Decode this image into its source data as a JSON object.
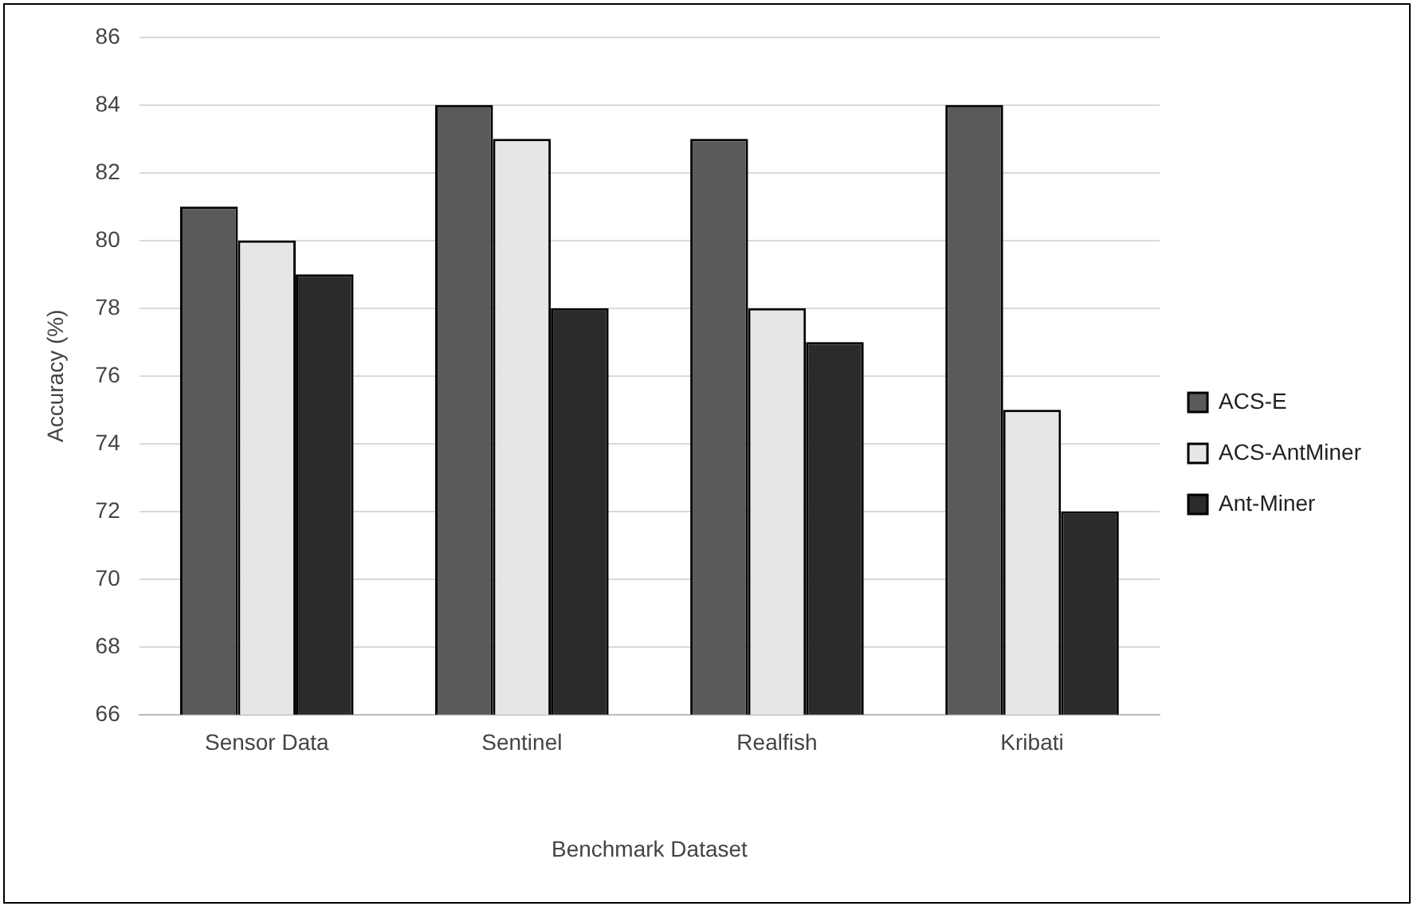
{
  "chart_data": {
    "type": "bar",
    "xlabel": "Benchmark Dataset",
    "ylabel": "Accuracy (%)",
    "categories": [
      "Sensor Data",
      "Sentinel",
      "Realfish",
      "Kribati"
    ],
    "series": [
      {
        "name": "ACS-E",
        "color": "#5a5a5a",
        "values": [
          81,
          84,
          83,
          84
        ]
      },
      {
        "name": "ACS-AntMiner",
        "color": "#e6e6e6",
        "values": [
          80,
          83,
          78,
          75
        ]
      },
      {
        "name": "Ant-Miner",
        "color": "#2b2b2b",
        "values": [
          79,
          78,
          77,
          72
        ]
      }
    ],
    "ylim": [
      66,
      86
    ],
    "yticks": [
      66,
      68,
      70,
      72,
      74,
      76,
      78,
      80,
      82,
      84,
      86
    ],
    "grid": "y",
    "legend": "right"
  }
}
